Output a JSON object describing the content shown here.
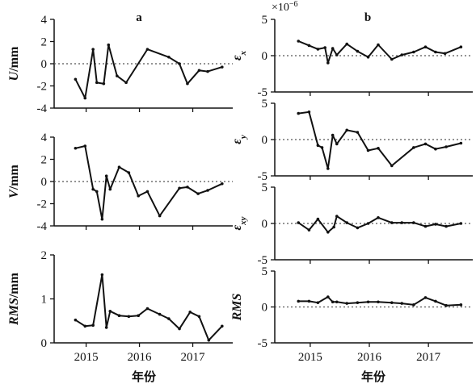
{
  "chart_data": [
    {
      "id": "U",
      "type": "line",
      "column": "a",
      "ylabel": "U",
      "yunit": "/mm",
      "ylim": [
        -4,
        4
      ],
      "yticks": [
        "-4",
        "-2",
        "0",
        "2",
        "4"
      ],
      "yvals": [
        -4,
        -2,
        0,
        2,
        4
      ],
      "zero_line": true,
      "points": [
        [
          2014.8,
          -1.4
        ],
        [
          2014.98,
          -3.1
        ],
        [
          2015.13,
          1.3
        ],
        [
          2015.2,
          -1.7
        ],
        [
          2015.33,
          -1.8
        ],
        [
          2015.42,
          1.7
        ],
        [
          2015.58,
          -1.1
        ],
        [
          2015.75,
          -1.7
        ],
        [
          2016.15,
          1.3
        ],
        [
          2016.55,
          0.6
        ],
        [
          2016.75,
          0.0
        ],
        [
          2016.9,
          -1.8
        ],
        [
          2017.12,
          -0.6
        ],
        [
          2017.28,
          -0.7
        ],
        [
          2017.55,
          -0.3
        ]
      ]
    },
    {
      "id": "V",
      "type": "line",
      "column": "a",
      "ylabel": "V",
      "yunit": "/mm",
      "ylim": [
        -4,
        4
      ],
      "yticks": [
        "-4",
        "-2",
        "0",
        "2",
        "4"
      ],
      "yvals": [
        -4,
        -2,
        0,
        2,
        4
      ],
      "zero_line": true,
      "points": [
        [
          2014.8,
          3.0
        ],
        [
          2014.98,
          3.2
        ],
        [
          2015.13,
          -0.7
        ],
        [
          2015.2,
          -0.9
        ],
        [
          2015.3,
          -3.4
        ],
        [
          2015.38,
          0.5
        ],
        [
          2015.45,
          -0.7
        ],
        [
          2015.62,
          1.3
        ],
        [
          2015.8,
          0.8
        ],
        [
          2015.98,
          -1.3
        ],
        [
          2016.15,
          -0.9
        ],
        [
          2016.38,
          -3.1
        ],
        [
          2016.75,
          -0.6
        ],
        [
          2016.9,
          -0.5
        ],
        [
          2017.1,
          -1.1
        ],
        [
          2017.28,
          -0.8
        ],
        [
          2017.55,
          -0.2
        ]
      ]
    },
    {
      "id": "RMS_a",
      "type": "line",
      "column": "a",
      "ylabel": "RMS",
      "yunit": "/mm",
      "ylim": [
        0,
        2
      ],
      "yticks": [
        "0",
        "1",
        "2"
      ],
      "yvals": [
        0,
        1,
        2
      ],
      "zero_line": false,
      "points": [
        [
          2014.8,
          0.52
        ],
        [
          2014.98,
          0.38
        ],
        [
          2015.13,
          0.4
        ],
        [
          2015.3,
          1.55
        ],
        [
          2015.38,
          0.35
        ],
        [
          2015.45,
          0.72
        ],
        [
          2015.62,
          0.62
        ],
        [
          2015.8,
          0.6
        ],
        [
          2015.98,
          0.62
        ],
        [
          2016.15,
          0.78
        ],
        [
          2016.38,
          0.65
        ],
        [
          2016.55,
          0.55
        ],
        [
          2016.75,
          0.32
        ],
        [
          2016.95,
          0.7
        ],
        [
          2017.12,
          0.6
        ],
        [
          2017.3,
          0.06
        ],
        [
          2017.55,
          0.38
        ]
      ]
    },
    {
      "id": "ex",
      "type": "line",
      "column": "b",
      "ylabel": "ε",
      "ysub": "x",
      "yscale_label": "×10",
      "yscale_exp": "−6",
      "ylim": [
        -5,
        5
      ],
      "yticks": [
        "-5",
        "0",
        "5"
      ],
      "yvals": [
        -5,
        0,
        5
      ],
      "zero_line": true,
      "points": [
        [
          2014.8,
          2.0
        ],
        [
          2014.98,
          1.4
        ],
        [
          2015.13,
          0.9
        ],
        [
          2015.25,
          1.1
        ],
        [
          2015.3,
          -1.0
        ],
        [
          2015.38,
          1.0
        ],
        [
          2015.45,
          0.1
        ],
        [
          2015.62,
          1.6
        ],
        [
          2015.8,
          0.6
        ],
        [
          2015.98,
          -0.2
        ],
        [
          2016.15,
          1.5
        ],
        [
          2016.38,
          -0.5
        ],
        [
          2016.55,
          0.1
        ],
        [
          2016.75,
          0.5
        ],
        [
          2016.95,
          1.2
        ],
        [
          2017.12,
          0.5
        ],
        [
          2017.28,
          0.3
        ],
        [
          2017.55,
          1.2
        ]
      ]
    },
    {
      "id": "ey",
      "type": "line",
      "column": "b",
      "ylabel": "ε",
      "ysub": "y",
      "ylim": [
        -5,
        5
      ],
      "yticks": [
        "-5",
        "0",
        "5"
      ],
      "yvals": [
        -5,
        0,
        5
      ],
      "zero_line": true,
      "points": [
        [
          2014.8,
          3.6
        ],
        [
          2014.98,
          3.8
        ],
        [
          2015.13,
          -0.8
        ],
        [
          2015.2,
          -1.1
        ],
        [
          2015.3,
          -4.0
        ],
        [
          2015.38,
          0.6
        ],
        [
          2015.45,
          -0.6
        ],
        [
          2015.62,
          1.3
        ],
        [
          2015.8,
          1.0
        ],
        [
          2015.98,
          -1.5
        ],
        [
          2016.15,
          -1.2
        ],
        [
          2016.38,
          -3.6
        ],
        [
          2016.75,
          -1.1
        ],
        [
          2016.95,
          -0.6
        ],
        [
          2017.12,
          -1.3
        ],
        [
          2017.3,
          -1.0
        ],
        [
          2017.55,
          -0.5
        ]
      ]
    },
    {
      "id": "exy",
      "type": "line",
      "column": "b",
      "ylabel": "ε",
      "ysub": "xy",
      "ylim": [
        -5,
        5
      ],
      "yticks": [
        "-5",
        "0",
        "5"
      ],
      "yvals": [
        -5,
        0,
        5
      ],
      "zero_line": true,
      "points": [
        [
          2014.8,
          0.1
        ],
        [
          2014.98,
          -0.9
        ],
        [
          2015.13,
          0.6
        ],
        [
          2015.3,
          -1.2
        ],
        [
          2015.4,
          -0.5
        ],
        [
          2015.45,
          1.0
        ],
        [
          2015.62,
          0.1
        ],
        [
          2015.8,
          -0.6
        ],
        [
          2015.98,
          0.0
        ],
        [
          2016.15,
          0.8
        ],
        [
          2016.38,
          0.1
        ],
        [
          2016.55,
          0.1
        ],
        [
          2016.75,
          0.1
        ],
        [
          2016.95,
          -0.4
        ],
        [
          2017.12,
          -0.1
        ],
        [
          2017.3,
          -0.4
        ],
        [
          2017.55,
          0.0
        ]
      ]
    },
    {
      "id": "RMS_b",
      "type": "line",
      "column": "b",
      "ylabel": "RMS",
      "ylim": [
        -5,
        5
      ],
      "yticks": [
        "-5",
        "0",
        "5"
      ],
      "yvals": [
        -5,
        0,
        5
      ],
      "zero_line": true,
      "points": [
        [
          2014.8,
          0.8
        ],
        [
          2014.98,
          0.8
        ],
        [
          2015.13,
          0.6
        ],
        [
          2015.3,
          1.4
        ],
        [
          2015.38,
          0.7
        ],
        [
          2015.45,
          0.7
        ],
        [
          2015.62,
          0.5
        ],
        [
          2015.8,
          0.6
        ],
        [
          2015.98,
          0.7
        ],
        [
          2016.15,
          0.7
        ],
        [
          2016.38,
          0.6
        ],
        [
          2016.55,
          0.5
        ],
        [
          2016.75,
          0.3
        ],
        [
          2016.95,
          1.3
        ],
        [
          2017.12,
          0.8
        ],
        [
          2017.3,
          0.2
        ],
        [
          2017.55,
          0.3
        ]
      ]
    }
  ],
  "axes": {
    "xlim": [
      2014.4,
      2017.75
    ],
    "xtick_values": [
      2015,
      2016,
      2017
    ],
    "xtick_labels": [
      "2015",
      "2016",
      "2017"
    ],
    "xlabel": "年份",
    "panel_a": "a",
    "panel_b": "b"
  },
  "style": {
    "line_color": "#111111",
    "zero_line_color": "#555555"
  }
}
